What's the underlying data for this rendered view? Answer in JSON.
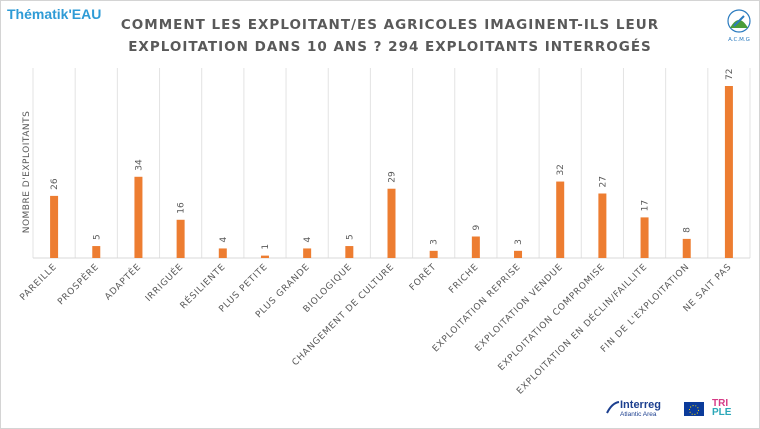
{
  "brand": "Thématik'EAU",
  "chart_data": {
    "type": "bar",
    "title_line1": "COMMENT LES EXPLOITANT/ES AGRICOLES IMAGINENT-ILS LEUR",
    "title_line2": "EXPLOITATION DANS 10 ANS ? 294 EXPLOITANTS INTERROGÉS",
    "ylabel": "NOMBRE D'EXPLOITANTS",
    "ylim": [
      0,
      72
    ],
    "grid": "vertical",
    "bar_color": "#ed7d31",
    "categories": [
      "PAREILLE",
      "PROSPÈRE",
      "ADAPTÉE",
      "IRRIGUÉE",
      "RÉSILIENTE",
      "PLUS PETITE",
      "PLUS GRANDE",
      "BIOLOGIQUE",
      "CHANGEMENT DE CULTURE",
      "FORÊT",
      "FRICHE",
      "EXPLOITATION REPRISE",
      "EXPLOITATION VENDUE",
      "EXPLOITATION COMPROMISE",
      "EXPLOITATION EN DÉCLIN/FAILLITE",
      "FIN DE L'EXPLOITATION",
      "NE SAIT PAS"
    ],
    "values": [
      26,
      5,
      34,
      16,
      4,
      1,
      4,
      5,
      29,
      3,
      9,
      3,
      32,
      27,
      17,
      8,
      72
    ]
  },
  "logos": {
    "acmg": "A.C.M.G",
    "interreg_name": "Interreg",
    "interreg_sub": "Atlantic Area",
    "triple_1": "TRI",
    "triple_2": "PLE"
  },
  "colors": {
    "brand": "#2e9bd6",
    "bar": "#ed7d31",
    "title": "#595959"
  }
}
